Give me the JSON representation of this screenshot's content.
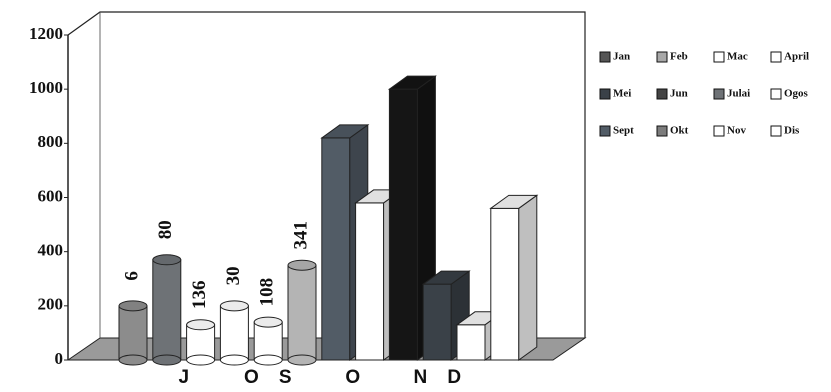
{
  "chart_data": {
    "type": "bar3d",
    "categories": [
      null,
      "J",
      null,
      "O",
      "S",
      null,
      "O",
      null,
      "N",
      "D",
      null,
      null
    ],
    "values": [
      200,
      370,
      130,
      200,
      140,
      350,
      820,
      580,
      1000,
      280,
      130,
      560
    ],
    "colors": [
      "#8c8c8c",
      "#6e7276",
      "#ffffff",
      "#ffffff",
      "#ffffff",
      "#b4b4b4",
      "#525c66",
      "#ffffff",
      "#151515",
      "#3a4148",
      "#ffffff",
      "#ffffff"
    ],
    "annotations": [
      "6",
      "80",
      "136",
      "30",
      "108",
      "341"
    ],
    "ylim": [
      0,
      1200
    ],
    "yticks": [
      0,
      200,
      400,
      600,
      800,
      1000,
      1200
    ],
    "legend": [
      {
        "name": "Jan",
        "color": "#555555"
      },
      {
        "name": "Feb",
        "color": "#a8a8a8"
      },
      {
        "name": "Mac",
        "color": "#ffffff"
      },
      {
        "name": "April",
        "color": "#ffffff"
      },
      {
        "name": "Mei",
        "color": "#3a4148"
      },
      {
        "name": "Jun",
        "color": "#444444"
      },
      {
        "name": "Julai",
        "color": "#6e7276"
      },
      {
        "name": "Ogos",
        "color": "#ffffff"
      },
      {
        "name": "Sept",
        "color": "#525c66"
      },
      {
        "name": "Okt",
        "color": "#7c7c7c"
      },
      {
        "name": "Nov",
        "color": "#ffffff"
      },
      {
        "name": "Dis",
        "color": "#ffffff"
      }
    ]
  }
}
